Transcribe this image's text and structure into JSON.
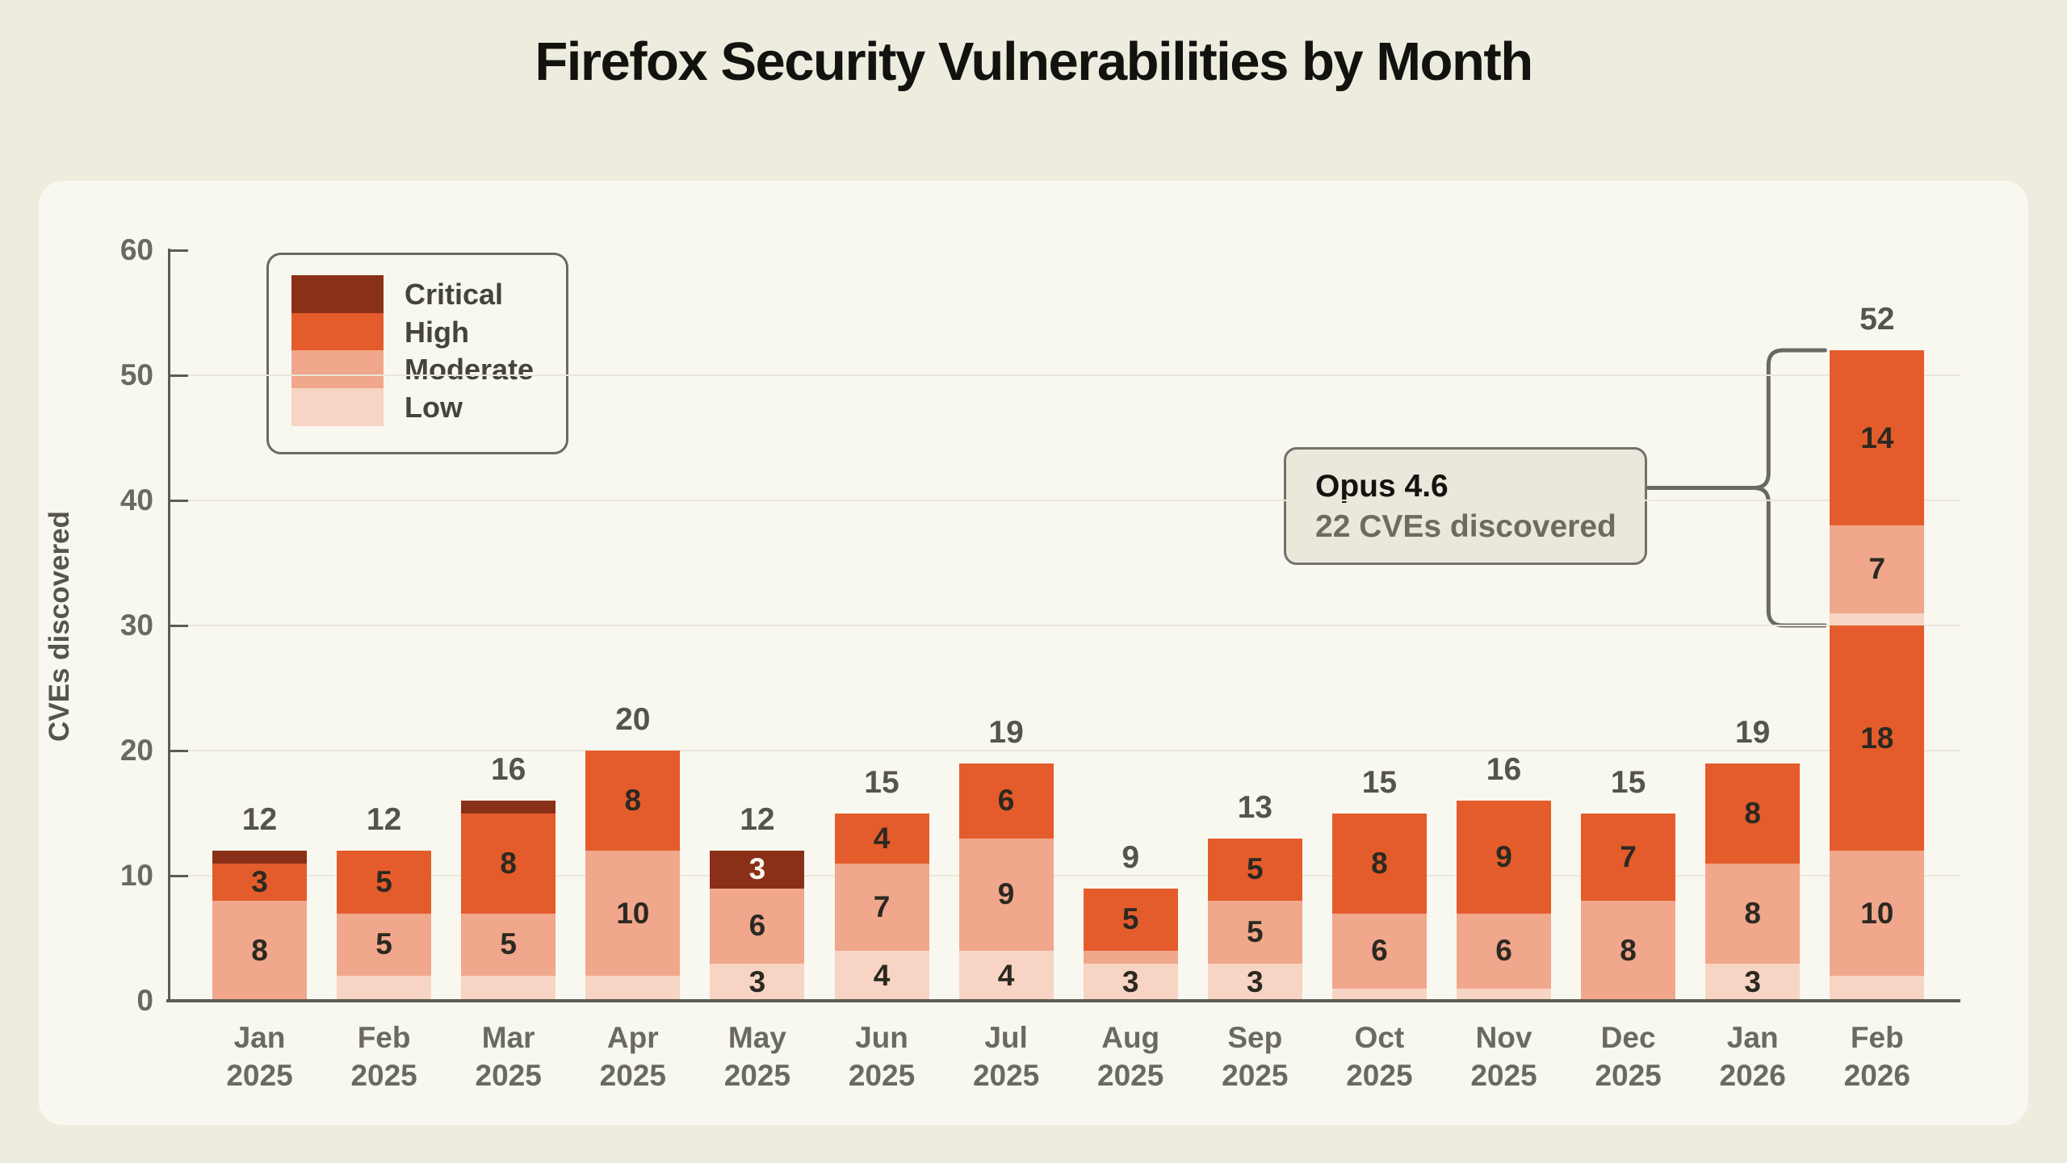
{
  "page": {
    "title": "Firefox Security Vulnerabilities by Month"
  },
  "chart_data": {
    "type": "bar",
    "stacked": true,
    "title": "Firefox Security Vulnerabilities by Month",
    "xlabel": "",
    "ylabel": "CVEs discovered",
    "ylim": [
      0,
      60
    ],
    "yticks": [
      0,
      10,
      20,
      30,
      40,
      50,
      60
    ],
    "grid": "horizontal gridlines at 10-50, behind bars",
    "legend_position": "upper-left boxed",
    "value_label_min": 3,
    "legend": [
      {
        "label": "Critical",
        "color": "#8a3018"
      },
      {
        "label": "High",
        "color": "#e45c2b"
      },
      {
        "label": "Moderate",
        "color": "#f0a78b"
      },
      {
        "label": "Low",
        "color": "#f7d4c4"
      }
    ],
    "categories": [
      "Jan 2025",
      "Feb 2025",
      "Mar 2025",
      "Apr 2025",
      "May 2025",
      "Jun 2025",
      "Jul 2025",
      "Aug 2025",
      "Sep 2025",
      "Oct 2025",
      "Nov 2025",
      "Dec 2025",
      "Jan 2026",
      "Feb 2026"
    ],
    "bars": [
      {
        "month": "Jan",
        "year": "2025",
        "total": 12,
        "segments": [
          {
            "severity": "Moderate",
            "value": 8
          },
          {
            "severity": "High",
            "value": 3
          },
          {
            "severity": "Critical",
            "value": 1
          }
        ]
      },
      {
        "month": "Feb",
        "year": "2025",
        "total": 12,
        "segments": [
          {
            "severity": "Low",
            "value": 2
          },
          {
            "severity": "Moderate",
            "value": 5
          },
          {
            "severity": "High",
            "value": 5
          }
        ]
      },
      {
        "month": "Mar",
        "year": "2025",
        "total": 16,
        "segments": [
          {
            "severity": "Low",
            "value": 2
          },
          {
            "severity": "Moderate",
            "value": 5
          },
          {
            "severity": "High",
            "value": 8
          },
          {
            "severity": "Critical",
            "value": 1
          }
        ]
      },
      {
        "month": "Apr",
        "year": "2025",
        "total": 20,
        "segments": [
          {
            "severity": "Low",
            "value": 2
          },
          {
            "severity": "Moderate",
            "value": 10
          },
          {
            "severity": "High",
            "value": 8
          }
        ]
      },
      {
        "month": "May",
        "year": "2025",
        "total": 12,
        "segments": [
          {
            "severity": "Low",
            "value": 3
          },
          {
            "severity": "Moderate",
            "value": 6
          },
          {
            "severity": "Critical",
            "value": 3
          }
        ]
      },
      {
        "month": "Jun",
        "year": "2025",
        "total": 15,
        "segments": [
          {
            "severity": "Low",
            "value": 4
          },
          {
            "severity": "Moderate",
            "value": 7
          },
          {
            "severity": "High",
            "value": 4
          }
        ]
      },
      {
        "month": "Jul",
        "year": "2025",
        "total": 19,
        "segments": [
          {
            "severity": "Low",
            "value": 4
          },
          {
            "severity": "Moderate",
            "value": 9
          },
          {
            "severity": "High",
            "value": 6
          }
        ]
      },
      {
        "month": "Aug",
        "year": "2025",
        "total": 9,
        "segments": [
          {
            "severity": "Low",
            "value": 3
          },
          {
            "severity": "Moderate",
            "value": 1
          },
          {
            "severity": "High",
            "value": 5
          }
        ]
      },
      {
        "month": "Sep",
        "year": "2025",
        "total": 13,
        "segments": [
          {
            "severity": "Low",
            "value": 3
          },
          {
            "severity": "Moderate",
            "value": 5
          },
          {
            "severity": "High",
            "value": 5
          }
        ]
      },
      {
        "month": "Oct",
        "year": "2025",
        "total": 15,
        "segments": [
          {
            "severity": "Low",
            "value": 1
          },
          {
            "severity": "Moderate",
            "value": 6
          },
          {
            "severity": "High",
            "value": 8
          }
        ]
      },
      {
        "month": "Nov",
        "year": "2025",
        "total": 16,
        "segments": [
          {
            "severity": "Low",
            "value": 1
          },
          {
            "severity": "Moderate",
            "value": 6
          },
          {
            "severity": "High",
            "value": 9
          }
        ]
      },
      {
        "month": "Dec",
        "year": "2025",
        "total": 15,
        "segments": [
          {
            "severity": "Moderate",
            "value": 8
          },
          {
            "severity": "High",
            "value": 7
          }
        ]
      },
      {
        "month": "Jan",
        "year": "2026",
        "total": 19,
        "segments": [
          {
            "severity": "Low",
            "value": 3
          },
          {
            "severity": "Moderate",
            "value": 8
          },
          {
            "severity": "High",
            "value": 8
          }
        ]
      },
      {
        "month": "Feb",
        "year": "2026",
        "total": 52,
        "segments": [
          {
            "severity": "Low",
            "value": 2
          },
          {
            "severity": "Moderate",
            "value": 10
          },
          {
            "severity": "High",
            "value": 18
          },
          {
            "severity": "Low",
            "value": 1
          },
          {
            "severity": "Moderate",
            "value": 7
          },
          {
            "severity": "High",
            "value": 14
          }
        ]
      }
    ],
    "annotation": {
      "title": "Opus 4.6",
      "subtitle": "22 CVEs discovered",
      "target_bar": "Feb 2026",
      "bracket_span_values": [
        30,
        52
      ]
    }
  },
  "theme": {
    "page_bg": "#edecdf",
    "card_bg": "#f9f8f0",
    "axis_color": "#5d5c51",
    "grid_color": "#e9e7d9",
    "dark_text": "#2b2921",
    "gray_text": "#6b6a5f",
    "total_text": "#56554b",
    "critical_label_text": "#f9f6ee",
    "annotation_bg": "#e9e8db",
    "annotation_border": "#73726a",
    "bracket_color": "#6b6a60",
    "legend_border": "#6b6a5f",
    "title_color": "#12120f"
  }
}
